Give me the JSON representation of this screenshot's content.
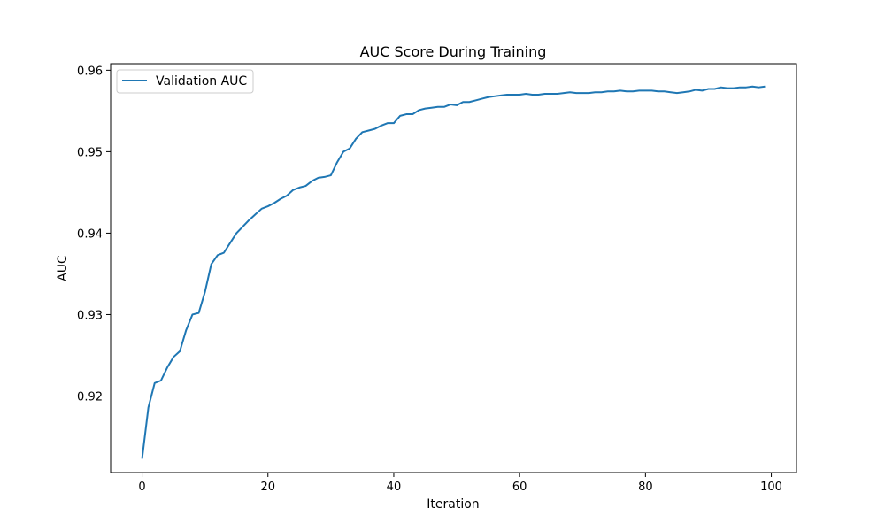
{
  "chart_data": {
    "type": "line",
    "title": "AUC Score During Training",
    "xlabel": "Iteration",
    "ylabel": "AUC",
    "xlim": [
      -5,
      104
    ],
    "ylim": [
      0.9106,
      0.9608
    ],
    "xticks": [
      0,
      20,
      40,
      60,
      80,
      100
    ],
    "yticks": [
      0.92,
      0.93,
      0.94,
      0.95,
      0.96
    ],
    "xtick_labels": [
      "0",
      "20",
      "40",
      "60",
      "80",
      "100"
    ],
    "ytick_labels": [
      "0.92",
      "0.93",
      "0.94",
      "0.95",
      "0.96"
    ],
    "grid": false,
    "legend_position": "top-left",
    "series": [
      {
        "name": "Validation AUC",
        "color": "#1f77b4",
        "x": [
          0,
          1,
          2,
          3,
          4,
          5,
          6,
          7,
          8,
          9,
          10,
          11,
          12,
          13,
          14,
          15,
          16,
          17,
          18,
          19,
          20,
          21,
          22,
          23,
          24,
          25,
          26,
          27,
          28,
          29,
          30,
          31,
          32,
          33,
          34,
          35,
          36,
          37,
          38,
          39,
          40,
          41,
          42,
          43,
          44,
          45,
          46,
          47,
          48,
          49,
          50,
          51,
          52,
          53,
          54,
          55,
          56,
          57,
          58,
          59,
          60,
          61,
          62,
          63,
          64,
          65,
          66,
          67,
          68,
          69,
          70,
          71,
          72,
          73,
          74,
          75,
          76,
          77,
          78,
          79,
          80,
          81,
          82,
          83,
          84,
          85,
          86,
          87,
          88,
          89,
          90,
          91,
          92,
          93,
          94,
          95,
          96,
          97,
          98,
          99
        ],
        "values": [
          0.9123,
          0.9186,
          0.9216,
          0.9219,
          0.9235,
          0.9248,
          0.9255,
          0.9281,
          0.93,
          0.9302,
          0.9328,
          0.9362,
          0.9373,
          0.9376,
          0.9388,
          0.94,
          0.9408,
          0.9416,
          0.9423,
          0.943,
          0.9433,
          0.9437,
          0.9442,
          0.9446,
          0.9453,
          0.9456,
          0.9458,
          0.9464,
          0.9468,
          0.9469,
          0.9471,
          0.9487,
          0.95,
          0.9504,
          0.9516,
          0.9524,
          0.9526,
          0.9528,
          0.9532,
          0.9535,
          0.9535,
          0.9544,
          0.9546,
          0.9546,
          0.9551,
          0.9553,
          0.9554,
          0.9555,
          0.9555,
          0.9558,
          0.9557,
          0.9561,
          0.9561,
          0.9563,
          0.9565,
          0.9567,
          0.9568,
          0.9569,
          0.957,
          0.957,
          0.957,
          0.9571,
          0.957,
          0.957,
          0.9571,
          0.9571,
          0.9571,
          0.9572,
          0.9573,
          0.9572,
          0.9572,
          0.9572,
          0.9573,
          0.9573,
          0.9574,
          0.9574,
          0.9575,
          0.9574,
          0.9574,
          0.9575,
          0.9575,
          0.9575,
          0.9574,
          0.9574,
          0.9573,
          0.9572,
          0.9573,
          0.9574,
          0.9576,
          0.9575,
          0.9577,
          0.9577,
          0.9579,
          0.9578,
          0.9578,
          0.9579,
          0.9579,
          0.958,
          0.9579,
          0.958
        ]
      }
    ]
  }
}
